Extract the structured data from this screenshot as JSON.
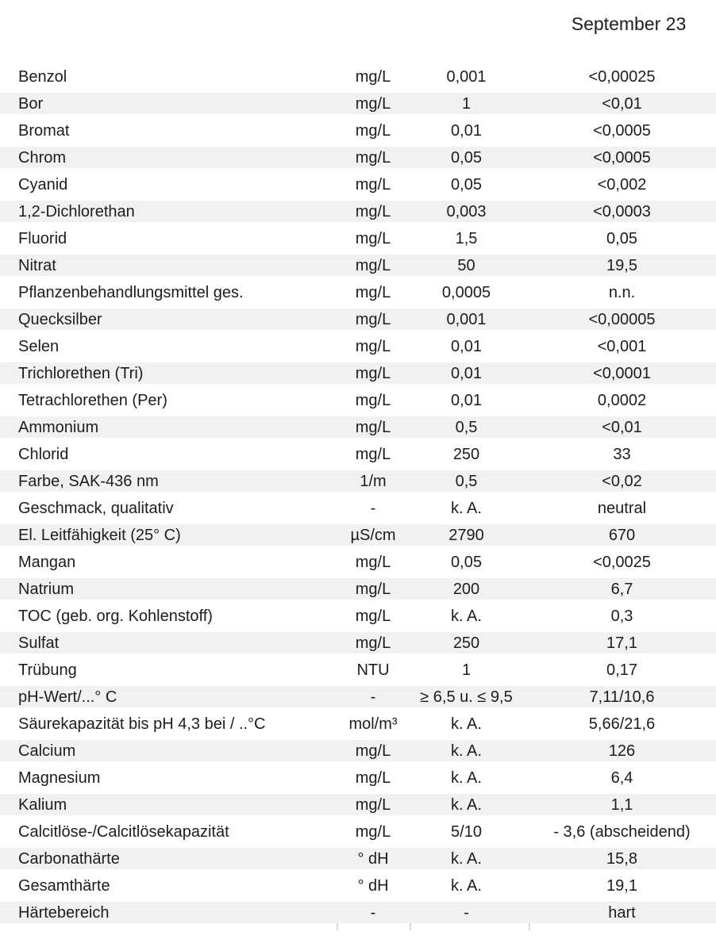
{
  "header": {
    "date": "September 23"
  },
  "table": {
    "rows": [
      {
        "name": "Benzol",
        "unit": "mg/L",
        "limit": "0,001",
        "value": "<0,00025"
      },
      {
        "name": "Bor",
        "unit": "mg/L",
        "limit": "1",
        "value": "<0,01"
      },
      {
        "name": "Bromat",
        "unit": "mg/L",
        "limit": "0,01",
        "value": "<0,0005"
      },
      {
        "name": "Chrom",
        "unit": "mg/L",
        "limit": "0,05",
        "value": "<0,0005"
      },
      {
        "name": "Cyanid",
        "unit": "mg/L",
        "limit": "0,05",
        "value": "<0,002"
      },
      {
        "name": "1,2-Dichlorethan",
        "unit": "mg/L",
        "limit": "0,003",
        "value": "<0,0003"
      },
      {
        "name": "Fluorid",
        "unit": "mg/L",
        "limit": "1,5",
        "value": "0,05"
      },
      {
        "name": "Nitrat",
        "unit": "mg/L",
        "limit": "50",
        "value": "19,5"
      },
      {
        "name": "Pflanzenbehandlungsmittel ges.",
        "unit": "mg/L",
        "limit": "0,0005",
        "value": "n.n."
      },
      {
        "name": "Quecksilber",
        "unit": "mg/L",
        "limit": "0,001",
        "value": "<0,00005"
      },
      {
        "name": "Selen",
        "unit": "mg/L",
        "limit": "0,01",
        "value": "<0,001"
      },
      {
        "name": "Trichlorethen (Tri)",
        "unit": "mg/L",
        "limit": "0,01",
        "value": "<0,0001"
      },
      {
        "name": "Tetrachlorethen (Per)",
        "unit": "mg/L",
        "limit": "0,01",
        "value": "0,0002"
      },
      {
        "name": "Ammonium",
        "unit": "mg/L",
        "limit": "0,5",
        "value": "<0,01"
      },
      {
        "name": "Chlorid",
        "unit": "mg/L",
        "limit": "250",
        "value": "33"
      },
      {
        "name": "Farbe, SAK-436 nm",
        "unit": "1/m",
        "limit": "0,5",
        "value": "<0,02"
      },
      {
        "name": "Geschmack, qualitativ",
        "unit": "-",
        "limit": "k. A.",
        "value": "neutral"
      },
      {
        "name": "El. Leitfähigkeit (25° C)",
        "unit": "µS/cm",
        "limit": "2790",
        "value": "670"
      },
      {
        "name": "Mangan",
        "unit": "mg/L",
        "limit": "0,05",
        "value": "<0,0025"
      },
      {
        "name": "Natrium",
        "unit": "mg/L",
        "limit": "200",
        "value": "6,7"
      },
      {
        "name": "TOC (geb. org. Kohlenstoff)",
        "unit": "mg/L",
        "limit": "k. A.",
        "value": "0,3"
      },
      {
        "name": "Sulfat",
        "unit": "mg/L",
        "limit": "250",
        "value": "17,1"
      },
      {
        "name": "Trübung",
        "unit": "NTU",
        "limit": "1",
        "value": "0,17"
      },
      {
        "name": "pH-Wert/...° C",
        "unit": "-",
        "limit": "≥ 6,5 u. ≤ 9,5",
        "value": "7,11/10,6"
      },
      {
        "name": "Säurekapazität bis pH 4,3 bei / ..°C",
        "unit": "mol/m³",
        "limit": "k. A.",
        "value": "5,66/21,6"
      },
      {
        "name": "Calcium",
        "unit": "mg/L",
        "limit": "k. A.",
        "value": "126"
      },
      {
        "name": "Magnesium",
        "unit": "mg/L",
        "limit": "k. A.",
        "value": "6,4"
      },
      {
        "name": "Kalium",
        "unit": "mg/L",
        "limit": "k. A.",
        "value": "1,1"
      },
      {
        "name": "Calcitlöse-/Calcitlösekapazität",
        "unit": "mg/L",
        "limit": "5/10",
        "value": "- 3,6 (abscheidend)"
      },
      {
        "name": "Carbonathärte",
        "unit": "° dH",
        "limit": "k. A.",
        "value": "15,8"
      },
      {
        "name": "Gesamthärte",
        "unit": "° dH",
        "limit": "k. A.",
        "value": "19,1"
      },
      {
        "name": "Härtebereich",
        "unit": "-",
        "limit": "-",
        "value": "hart"
      }
    ]
  },
  "colors": {
    "row_shade": "#f1f1f1",
    "text": "#1d1d1d",
    "border_remnant": "#d9d9d9"
  }
}
